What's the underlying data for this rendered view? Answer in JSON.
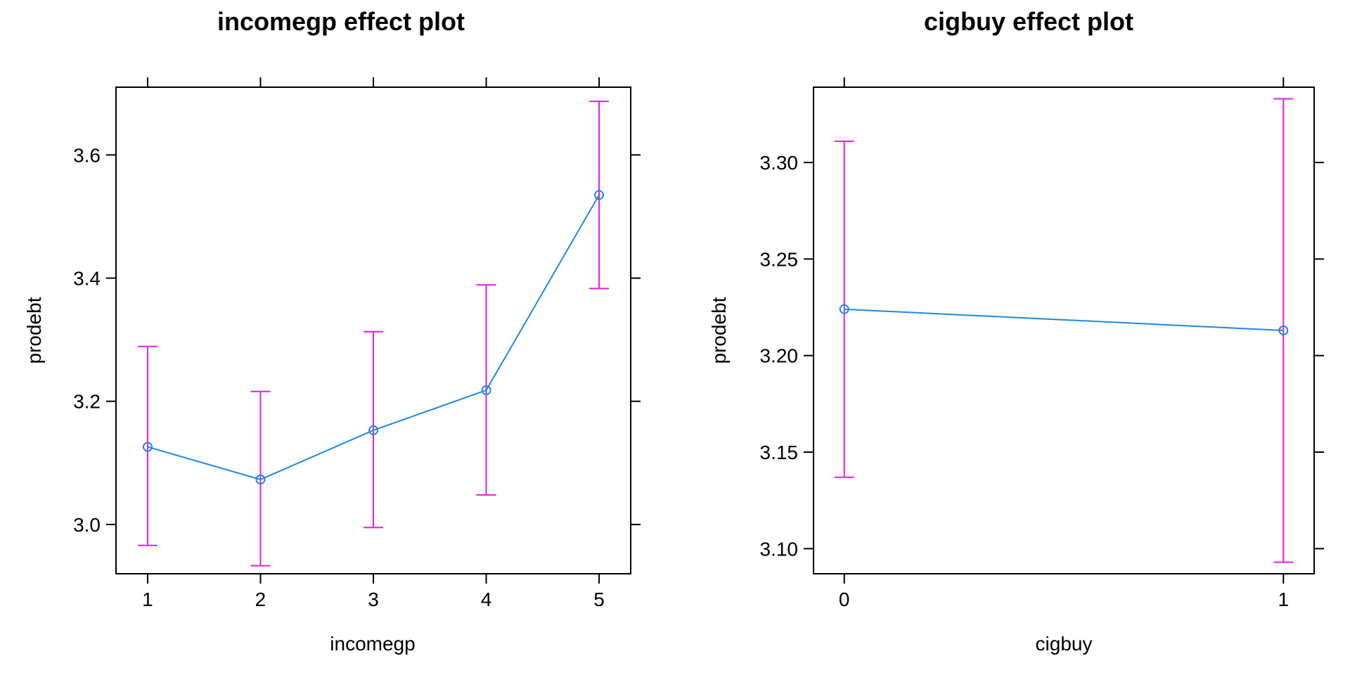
{
  "chart_data": [
    {
      "type": "line",
      "title": "incomegp effect plot",
      "xlabel": "incomegp",
      "ylabel": "prodebt",
      "categories": [
        "1",
        "2",
        "3",
        "4",
        "5"
      ],
      "x": [
        1,
        2,
        3,
        4,
        5
      ],
      "fit": [
        3.126,
        3.073,
        3.153,
        3.218,
        3.535
      ],
      "lower": [
        2.966,
        2.933,
        2.995,
        3.048,
        3.383
      ],
      "upper": [
        3.289,
        3.216,
        3.313,
        3.389,
        3.687
      ],
      "xlim": [
        0.72,
        5.28
      ],
      "ylim": [
        2.92,
        3.71
      ],
      "yticks": [
        "3.0",
        "3.2",
        "3.4",
        "3.6"
      ],
      "grid": false,
      "line_color": "#1E88E5",
      "ci_color": "#E020E0"
    },
    {
      "type": "line",
      "title": "cigbuy effect plot",
      "xlabel": "cigbuy",
      "ylabel": "prodebt",
      "categories": [
        "0",
        "1"
      ],
      "x": [
        0,
        1
      ],
      "fit": [
        3.224,
        3.213
      ],
      "lower": [
        3.137,
        3.093
      ],
      "upper": [
        3.311,
        3.333
      ],
      "xlim": [
        -0.07,
        1.07
      ],
      "ylim": [
        3.087,
        3.339
      ],
      "yticks": [
        "3.10",
        "3.15",
        "3.20",
        "3.25",
        "3.30"
      ],
      "grid": false,
      "line_color": "#1E88E5",
      "ci_color": "#E020E0"
    }
  ]
}
